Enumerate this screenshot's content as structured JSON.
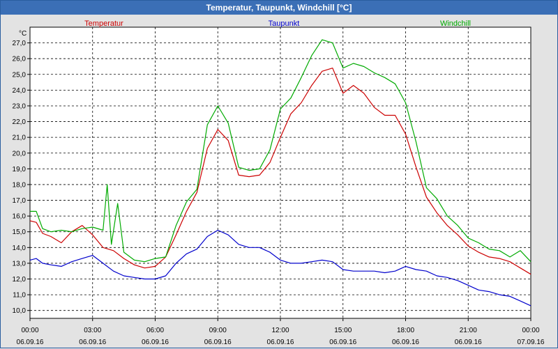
{
  "window": {
    "title": "Temperatur, Taupunkt, Windchill [°C]"
  },
  "chart_data": {
    "type": "line",
    "unit": "°C",
    "ylim": [
      9.5,
      28.0
    ],
    "y_ticks": [
      "10,0",
      "11,0",
      "12,0",
      "13,0",
      "14,0",
      "15,0",
      "16,0",
      "17,0",
      "18,0",
      "19,0",
      "20,0",
      "21,0",
      "22,0",
      "23,0",
      "24,0",
      "25,0",
      "26,0",
      "27,0"
    ],
    "x_ticks": [
      {
        "time": "00:00",
        "date": "06.09.16"
      },
      {
        "time": "03:00",
        "date": "06.09.16"
      },
      {
        "time": "06:00",
        "date": "06.09.16"
      },
      {
        "time": "09:00",
        "date": "06.09.16"
      },
      {
        "time": "12:00",
        "date": "06.09.16"
      },
      {
        "time": "15:00",
        "date": "06.09.16"
      },
      {
        "time": "18:00",
        "date": "06.09.16"
      },
      {
        "time": "21:00",
        "date": "06.09.16"
      },
      {
        "time": "00:00",
        "date": "07.09.16"
      }
    ],
    "grid": true,
    "legend": "top",
    "series": [
      {
        "name": "Temperatur",
        "color": "#cc0000",
        "x": [
          0,
          0.3,
          0.6,
          1,
          1.5,
          2,
          2.5,
          3,
          3.5,
          4,
          4.5,
          5,
          5.5,
          6,
          6.5,
          7,
          7.5,
          8,
          8.5,
          9,
          9.5,
          10,
          10.5,
          11,
          11.5,
          12,
          12.5,
          13,
          13.5,
          14,
          14.5,
          15,
          15.5,
          16,
          16.5,
          17,
          17.5,
          18,
          18.5,
          19,
          19.5,
          20,
          20.5,
          21,
          21.5,
          22,
          22.5,
          23,
          23.5,
          24
        ],
        "values": [
          15.7,
          15.6,
          14.9,
          14.7,
          14.3,
          15.0,
          15.4,
          14.8,
          14.0,
          13.8,
          13.3,
          12.9,
          12.7,
          12.8,
          13.4,
          14.8,
          16.3,
          17.5,
          20.3,
          21.5,
          20.8,
          18.6,
          18.5,
          18.6,
          19.4,
          21.0,
          22.5,
          23.2,
          24.3,
          25.2,
          25.4,
          23.8,
          24.3,
          23.8,
          22.9,
          22.4,
          22.4,
          21.2,
          19.1,
          17.2,
          16.2,
          15.4,
          14.8,
          14.1,
          13.7,
          13.4,
          13.3,
          13.1,
          12.7,
          12.3
        ]
      },
      {
        "name": "Taupunkt",
        "color": "#0000cc",
        "x": [
          0,
          0.3,
          0.6,
          1,
          1.5,
          2,
          2.5,
          3,
          3.5,
          4,
          4.5,
          5,
          5.5,
          6,
          6.5,
          7,
          7.5,
          8,
          8.5,
          9,
          9.5,
          10,
          10.5,
          11,
          11.5,
          12,
          12.5,
          13,
          13.5,
          14,
          14.5,
          15,
          15.5,
          16,
          16.5,
          17,
          17.5,
          18,
          18.5,
          19,
          19.5,
          20,
          20.5,
          21,
          21.5,
          22,
          22.5,
          23,
          23.5,
          24
        ],
        "values": [
          13.2,
          13.3,
          13.0,
          12.9,
          12.8,
          13.1,
          13.3,
          13.5,
          13.0,
          12.5,
          12.2,
          12.1,
          12.0,
          12.0,
          12.2,
          13.0,
          13.6,
          13.9,
          14.7,
          15.1,
          14.8,
          14.2,
          14.0,
          14.0,
          13.7,
          13.2,
          13.0,
          13.0,
          13.1,
          13.2,
          13.1,
          12.6,
          12.5,
          12.5,
          12.5,
          12.4,
          12.5,
          12.8,
          12.6,
          12.5,
          12.2,
          12.1,
          11.9,
          11.6,
          11.3,
          11.2,
          11.0,
          10.9,
          10.6,
          10.3
        ]
      },
      {
        "name": "Windchill",
        "color": "#00aa00",
        "x": [
          0,
          0.3,
          0.6,
          1,
          1.5,
          2,
          2.5,
          3,
          3.5,
          3.7,
          3.9,
          4.2,
          4.5,
          5,
          5.5,
          6,
          6.5,
          7,
          7.5,
          8,
          8.5,
          9,
          9.5,
          10,
          10.5,
          11,
          11.5,
          12,
          12.5,
          13,
          13.5,
          14,
          14.5,
          15,
          15.5,
          16,
          16.5,
          17,
          17.5,
          18,
          18.5,
          19,
          19.5,
          20,
          20.5,
          21,
          21.5,
          22,
          22.5,
          23,
          23.5,
          24
        ],
        "values": [
          16.3,
          16.3,
          15.2,
          15.0,
          15.1,
          15.0,
          15.2,
          15.3,
          15.1,
          18.0,
          14.2,
          16.8,
          13.7,
          13.2,
          13.1,
          13.3,
          13.4,
          15.4,
          16.9,
          17.7,
          21.8,
          23.0,
          21.9,
          19.1,
          18.9,
          19.0,
          20.2,
          22.8,
          23.5,
          24.8,
          26.2,
          27.2,
          27.0,
          25.4,
          25.7,
          25.5,
          25.1,
          24.8,
          24.4,
          23.2,
          20.7,
          17.8,
          17.1,
          16.0,
          15.4,
          14.6,
          14.3,
          13.9,
          13.8,
          13.4,
          13.8,
          13.1
        ]
      }
    ]
  }
}
